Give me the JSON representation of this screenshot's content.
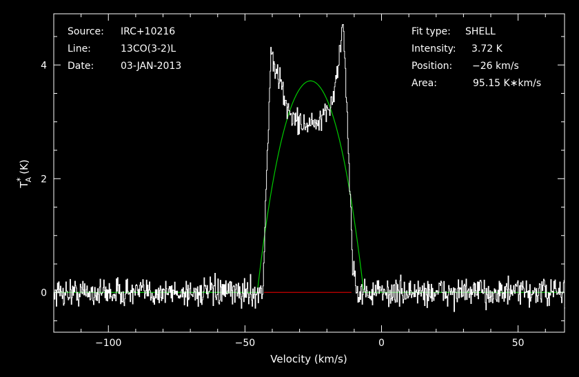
{
  "info_left": [
    {
      "key": "Source:",
      "value": "IRC+10216"
    },
    {
      "key": "Line:",
      "value": "13CO(3-2)L"
    },
    {
      "key": "Date:",
      "value": "03-JAN-2013"
    }
  ],
  "info_right": [
    {
      "key": "Fit type:",
      "value": "SHELL"
    },
    {
      "key": "Intensity:",
      "value": "3.72 K"
    },
    {
      "key": "Position:",
      "value": "−26 km/s"
    },
    {
      "key": "Area:",
      "value": "95.15 K∗km/s"
    }
  ],
  "colors": {
    "background": "#000000",
    "axes": "#ffffff",
    "spectrum": "#ffffff",
    "fit": "#00cc00",
    "baseline": "#cc0000"
  },
  "chart_data": {
    "type": "line",
    "xlabel": "Velocity (km/s)",
    "ylabel_main": "T",
    "ylabel_super": "*",
    "ylabel_sub": "A",
    "ylabel_units": "(K)",
    "xlim": [
      -120,
      67
    ],
    "ylim": [
      -0.7,
      4.9
    ],
    "x_ticks": [
      -100,
      -50,
      0,
      50
    ],
    "x_tick_labels": [
      "−100",
      "−50",
      "0",
      "50"
    ],
    "y_ticks": [
      0,
      2,
      4
    ],
    "y_tick_labels": [
      "0",
      "2",
      "4"
    ],
    "series": [
      {
        "role": "observed-spectrum",
        "noise_rms": 0.12,
        "profile": [
          {
            "v": -120,
            "t": 0
          },
          {
            "v": -43.5,
            "t": 0
          },
          {
            "v": -40.5,
            "t": 4.2
          },
          {
            "v": -39.5,
            "t": 4.0
          },
          {
            "v": -37,
            "t": 3.7
          },
          {
            "v": -35,
            "t": 3.3
          },
          {
            "v": -32,
            "t": 3.05
          },
          {
            "v": -28,
            "t": 2.95
          },
          {
            "v": -24,
            "t": 2.95
          },
          {
            "v": -21,
            "t": 3.05
          },
          {
            "v": -18,
            "t": 3.4
          },
          {
            "v": -16,
            "t": 3.9
          },
          {
            "v": -14,
            "t": 4.8
          },
          {
            "v": -12.5,
            "t": 3.0
          },
          {
            "v": -10.5,
            "t": 0.5
          },
          {
            "v": -9,
            "t": 0
          },
          {
            "v": 67,
            "t": 0
          }
        ]
      },
      {
        "role": "shell-fit",
        "center": -26,
        "peak": 3.72,
        "half_width": 19.5,
        "horn_ratio": 0.08
      },
      {
        "role": "baseline-window",
        "x_range": [
          -43,
          -11
        ],
        "y": 0
      }
    ]
  }
}
